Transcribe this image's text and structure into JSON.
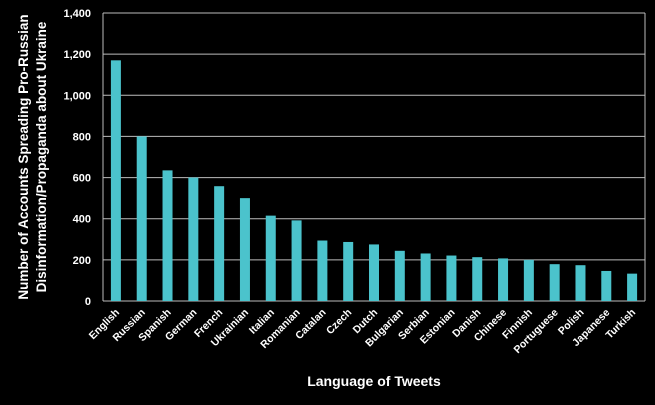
{
  "chart_data": {
    "type": "bar",
    "title": "",
    "xlabel": "Language of Tweets",
    "ylabel_lines": [
      "Number of Accounts Spreading Pro-Russian",
      "Disinformation/Propaganda about Ukraine"
    ],
    "ylabel": "Number of Accounts Spreading Pro-Russian Disinformation/Propaganda about Ukraine",
    "ylim": [
      0,
      1400
    ],
    "yticks": [
      0,
      200,
      400,
      600,
      800,
      1000,
      1200,
      1400
    ],
    "ytick_labels": [
      "0",
      "200",
      "400",
      "600",
      "800",
      "1,000",
      "1,200",
      "1,400"
    ],
    "grid": true,
    "bar_color": "#4bc3cc",
    "categories": [
      "English",
      "Russian",
      "Spanish",
      "German",
      "French",
      "Ukrainian",
      "Italian",
      "Romanian",
      "Catalan",
      "Czech",
      "Dutch",
      "Bulgarian",
      "Serbian",
      "Estonian",
      "Danish",
      "Chinese",
      "Finnish",
      "Portuguese",
      "Polish",
      "Japanese",
      "Turkish"
    ],
    "values": [
      1170,
      800,
      635,
      600,
      558,
      500,
      415,
      392,
      294,
      287,
      275,
      244,
      231,
      221,
      213,
      207,
      200,
      179,
      174,
      146,
      133
    ]
  }
}
